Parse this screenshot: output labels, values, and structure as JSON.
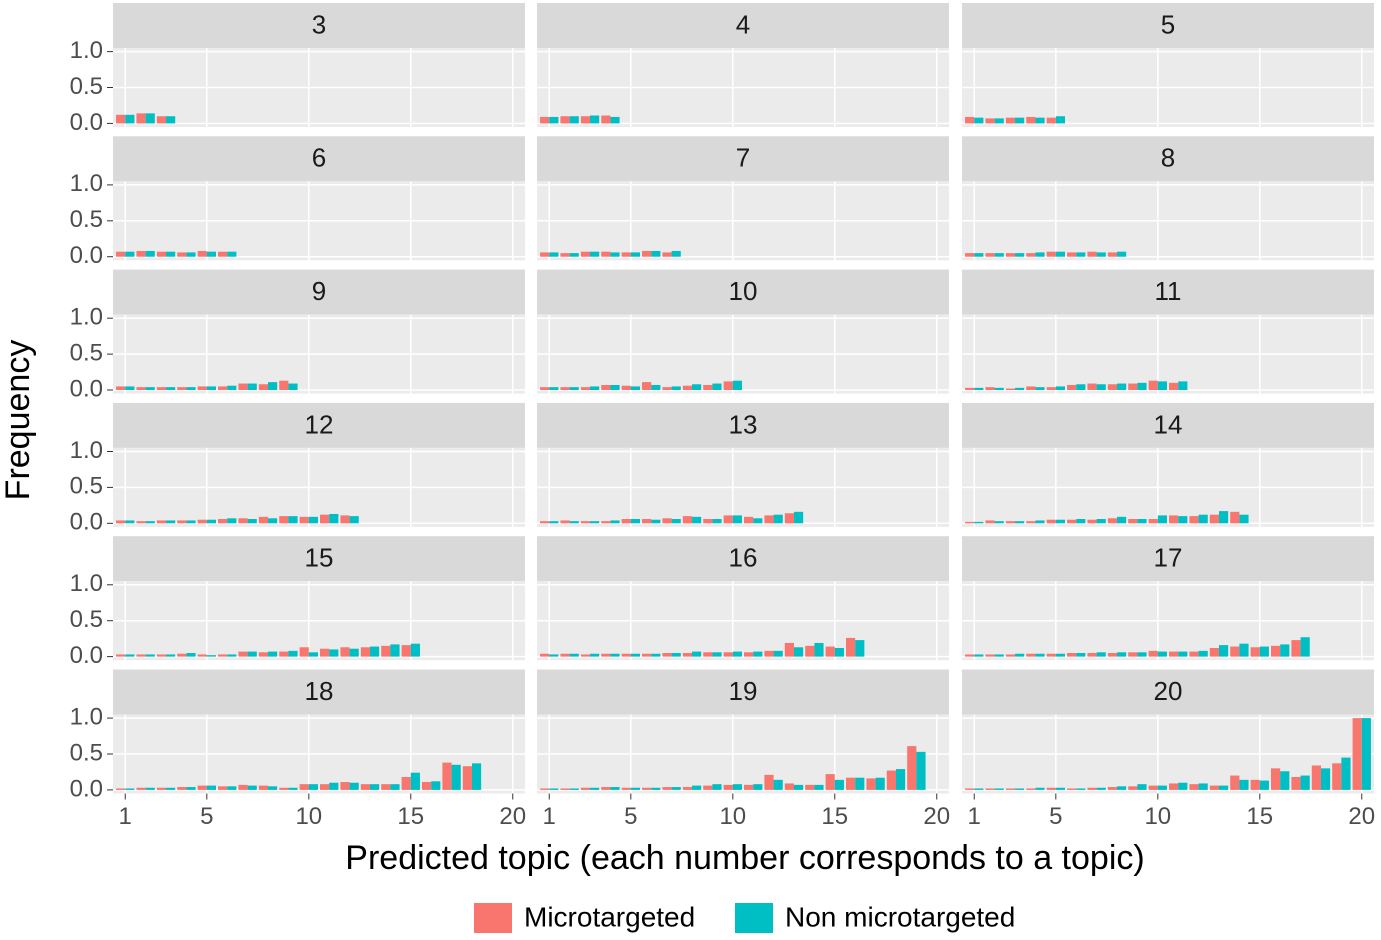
{
  "chart_data": {
    "type": "bar",
    "xlabel": "Predicted topic (each number corresponds to a topic)",
    "ylabel": "Frequency",
    "xlim": [
      0.4,
      20.6
    ],
    "xticks": [
      1,
      5,
      10,
      15,
      20
    ],
    "ylim": [
      -0.05,
      1.05
    ],
    "yticks": [
      {
        "value": 0,
        "label": "0.0"
      },
      0.5,
      {
        "value": 1,
        "label": "1.0"
      }
    ],
    "grid": true,
    "series": [
      {
        "name": "Microtargeted",
        "color": "#f8766d"
      },
      {
        "name": "Non microtargeted",
        "color": "#00bfc4"
      }
    ],
    "panels": [
      {
        "title": "3",
        "x": [
          1,
          2,
          3
        ],
        "values": [
          [
            0.12,
            0.14,
            0.1
          ],
          [
            0.12,
            0.14,
            0.1
          ]
        ]
      },
      {
        "title": "4",
        "x": [
          1,
          2,
          3,
          4
        ],
        "values": [
          [
            0.09,
            0.1,
            0.1,
            0.11
          ],
          [
            0.09,
            0.1,
            0.11,
            0.09
          ]
        ]
      },
      {
        "title": "5",
        "x": [
          1,
          2,
          3,
          4,
          5
        ],
        "values": [
          [
            0.09,
            0.07,
            0.08,
            0.09,
            0.08
          ],
          [
            0.08,
            0.07,
            0.08,
            0.08,
            0.1
          ]
        ]
      },
      {
        "title": "6",
        "x": [
          1,
          2,
          3,
          4,
          5,
          6
        ],
        "values": [
          [
            0.07,
            0.08,
            0.07,
            0.06,
            0.08,
            0.07
          ],
          [
            0.07,
            0.08,
            0.07,
            0.06,
            0.07,
            0.07
          ]
        ]
      },
      {
        "title": "7",
        "x": [
          1,
          2,
          3,
          4,
          5,
          6,
          7
        ],
        "values": [
          [
            0.06,
            0.05,
            0.07,
            0.07,
            0.06,
            0.08,
            0.06
          ],
          [
            0.06,
            0.05,
            0.07,
            0.06,
            0.06,
            0.08,
            0.08
          ]
        ]
      },
      {
        "title": "8",
        "x": [
          1,
          2,
          3,
          4,
          5,
          6,
          7,
          8
        ],
        "values": [
          [
            0.05,
            0.05,
            0.05,
            0.05,
            0.07,
            0.06,
            0.07,
            0.06
          ],
          [
            0.05,
            0.05,
            0.05,
            0.06,
            0.07,
            0.06,
            0.06,
            0.07
          ]
        ]
      },
      {
        "title": "9",
        "x": [
          1,
          2,
          3,
          4,
          5,
          6,
          7,
          8,
          9
        ],
        "values": [
          [
            0.05,
            0.04,
            0.04,
            0.04,
            0.05,
            0.05,
            0.09,
            0.08,
            0.13
          ],
          [
            0.05,
            0.04,
            0.04,
            0.04,
            0.05,
            0.06,
            0.09,
            0.11,
            0.09
          ]
        ]
      },
      {
        "title": "10",
        "x": [
          1,
          2,
          3,
          4,
          5,
          6,
          7,
          8,
          9,
          10
        ],
        "values": [
          [
            0.04,
            0.04,
            0.04,
            0.07,
            0.06,
            0.11,
            0.04,
            0.06,
            0.07,
            0.12
          ],
          [
            0.04,
            0.04,
            0.05,
            0.07,
            0.05,
            0.07,
            0.05,
            0.08,
            0.09,
            0.13
          ]
        ]
      },
      {
        "title": "11",
        "x": [
          1,
          2,
          3,
          4,
          5,
          6,
          7,
          8,
          9,
          10,
          11
        ],
        "values": [
          [
            0.03,
            0.04,
            0.02,
            0.05,
            0.04,
            0.07,
            0.09,
            0.08,
            0.09,
            0.13,
            0.1
          ],
          [
            0.03,
            0.03,
            0.03,
            0.04,
            0.05,
            0.08,
            0.08,
            0.09,
            0.1,
            0.12,
            0.12
          ]
        ]
      },
      {
        "title": "12",
        "x": [
          1,
          2,
          3,
          4,
          5,
          6,
          7,
          8,
          9,
          10,
          11,
          12
        ],
        "values": [
          [
            0.04,
            0.03,
            0.04,
            0.04,
            0.05,
            0.06,
            0.07,
            0.09,
            0.1,
            0.09,
            0.12,
            0.11
          ],
          [
            0.04,
            0.03,
            0.04,
            0.04,
            0.05,
            0.07,
            0.06,
            0.07,
            0.1,
            0.09,
            0.13,
            0.1
          ]
        ]
      },
      {
        "title": "13",
        "x": [
          1,
          2,
          3,
          4,
          5,
          6,
          7,
          8,
          9,
          10,
          11,
          12,
          13
        ],
        "values": [
          [
            0.03,
            0.04,
            0.03,
            0.03,
            0.06,
            0.06,
            0.07,
            0.1,
            0.06,
            0.11,
            0.09,
            0.11,
            0.14
          ],
          [
            0.03,
            0.03,
            0.03,
            0.04,
            0.06,
            0.05,
            0.06,
            0.09,
            0.06,
            0.11,
            0.07,
            0.12,
            0.16
          ]
        ]
      },
      {
        "title": "14",
        "x": [
          1,
          2,
          3,
          4,
          5,
          6,
          7,
          8,
          9,
          10,
          11,
          12,
          13,
          14
        ],
        "values": [
          [
            0.02,
            0.04,
            0.03,
            0.03,
            0.05,
            0.05,
            0.05,
            0.07,
            0.06,
            0.06,
            0.11,
            0.1,
            0.12,
            0.16
          ],
          [
            0.02,
            0.03,
            0.03,
            0.04,
            0.05,
            0.06,
            0.06,
            0.09,
            0.06,
            0.11,
            0.1,
            0.12,
            0.17,
            0.12
          ]
        ]
      },
      {
        "title": "15",
        "x": [
          1,
          2,
          3,
          4,
          5,
          6,
          7,
          8,
          9,
          10,
          11,
          12,
          13,
          14,
          15
        ],
        "values": [
          [
            0.03,
            0.03,
            0.03,
            0.04,
            0.03,
            0.03,
            0.07,
            0.06,
            0.07,
            0.13,
            0.11,
            0.13,
            0.13,
            0.15,
            0.16
          ],
          [
            0.03,
            0.03,
            0.03,
            0.05,
            0.02,
            0.03,
            0.07,
            0.07,
            0.08,
            0.06,
            0.1,
            0.11,
            0.14,
            0.17,
            0.18
          ]
        ]
      },
      {
        "title": "16",
        "x": [
          1,
          2,
          3,
          4,
          5,
          6,
          7,
          8,
          9,
          10,
          11,
          12,
          13,
          14,
          15,
          16
        ],
        "values": [
          [
            0.04,
            0.04,
            0.03,
            0.04,
            0.04,
            0.04,
            0.05,
            0.05,
            0.06,
            0.06,
            0.06,
            0.08,
            0.19,
            0.15,
            0.14,
            0.26
          ],
          [
            0.03,
            0.04,
            0.04,
            0.04,
            0.04,
            0.04,
            0.05,
            0.07,
            0.06,
            0.07,
            0.07,
            0.08,
            0.13,
            0.19,
            0.12,
            0.23
          ]
        ]
      },
      {
        "title": "17",
        "x": [
          1,
          2,
          3,
          4,
          5,
          6,
          7,
          8,
          9,
          10,
          11,
          12,
          13,
          14,
          15,
          16,
          17
        ],
        "values": [
          [
            0.03,
            0.03,
            0.03,
            0.04,
            0.04,
            0.05,
            0.05,
            0.05,
            0.06,
            0.08,
            0.07,
            0.07,
            0.12,
            0.14,
            0.13,
            0.15,
            0.23
          ],
          [
            0.03,
            0.03,
            0.04,
            0.04,
            0.04,
            0.05,
            0.06,
            0.06,
            0.06,
            0.07,
            0.07,
            0.08,
            0.16,
            0.18,
            0.14,
            0.17,
            0.27
          ]
        ]
      },
      {
        "title": "18",
        "x": [
          1,
          2,
          3,
          4,
          5,
          6,
          7,
          8,
          9,
          10,
          11,
          12,
          13,
          14,
          15,
          16,
          17,
          18
        ],
        "values": [
          [
            0.02,
            0.03,
            0.03,
            0.04,
            0.06,
            0.05,
            0.07,
            0.06,
            0.03,
            0.08,
            0.08,
            0.11,
            0.08,
            0.08,
            0.18,
            0.11,
            0.38,
            0.33
          ],
          [
            0.02,
            0.03,
            0.03,
            0.04,
            0.06,
            0.05,
            0.06,
            0.05,
            0.03,
            0.08,
            0.1,
            0.1,
            0.08,
            0.08,
            0.24,
            0.12,
            0.35,
            0.37
          ]
        ]
      },
      {
        "title": "19",
        "x": [
          1,
          2,
          3,
          4,
          5,
          6,
          7,
          8,
          9,
          10,
          11,
          12,
          13,
          14,
          15,
          16,
          17,
          18,
          19
        ],
        "values": [
          [
            0.02,
            0.02,
            0.03,
            0.04,
            0.03,
            0.03,
            0.04,
            0.04,
            0.06,
            0.07,
            0.07,
            0.21,
            0.09,
            0.07,
            0.22,
            0.17,
            0.16,
            0.27,
            0.61
          ],
          [
            0.02,
            0.02,
            0.03,
            0.04,
            0.03,
            0.03,
            0.04,
            0.06,
            0.08,
            0.08,
            0.08,
            0.14,
            0.07,
            0.07,
            0.14,
            0.17,
            0.17,
            0.29,
            0.53
          ]
        ]
      },
      {
        "title": "20",
        "x": [
          1,
          2,
          3,
          4,
          5,
          6,
          7,
          8,
          9,
          10,
          11,
          12,
          13,
          14,
          15,
          16,
          17,
          18,
          19,
          20
        ],
        "values": [
          [
            0.02,
            0.02,
            0.02,
            0.02,
            0.03,
            0.02,
            0.03,
            0.04,
            0.05,
            0.06,
            0.09,
            0.08,
            0.06,
            0.2,
            0.14,
            0.3,
            0.18,
            0.34,
            0.37,
            1.0
          ],
          [
            0.02,
            0.02,
            0.02,
            0.03,
            0.03,
            0.02,
            0.03,
            0.05,
            0.08,
            0.06,
            0.1,
            0.09,
            0.06,
            0.14,
            0.13,
            0.26,
            0.2,
            0.3,
            0.45,
            1.0
          ]
        ]
      }
    ]
  }
}
